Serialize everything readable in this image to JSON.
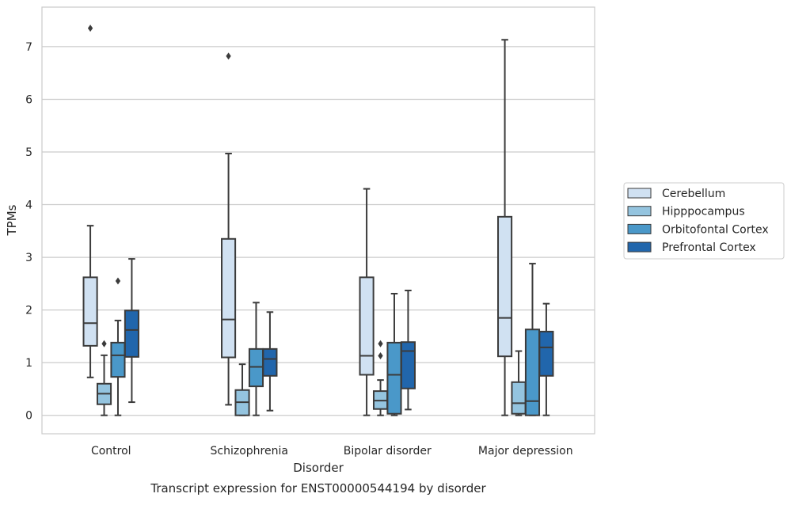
{
  "chart_data": {
    "type": "boxplot",
    "title": "Transcript expression for ENST00000544194 by disorder",
    "xlabel": "Disorder",
    "ylabel": "TPMs",
    "ylim": [
      -0.35,
      7.75
    ],
    "yticks": [
      0,
      1,
      2,
      3,
      4,
      5,
      6,
      7
    ],
    "grid": "horizontal",
    "legend_position": "right",
    "categories": [
      "Control",
      "Schizophrenia",
      "Bipolar disorder",
      "Major depression"
    ],
    "series": [
      {
        "name": "Cerebellum",
        "color": "#d0e1f2",
        "boxes": [
          {
            "whislo": 0.72,
            "q1": 1.32,
            "med": 1.75,
            "q3": 2.62,
            "whishi": 3.6,
            "fliers": [
              7.35
            ]
          },
          {
            "whislo": 0.2,
            "q1": 1.1,
            "med": 1.82,
            "q3": 3.35,
            "whishi": 4.97,
            "fliers": [
              6.82
            ]
          },
          {
            "whislo": 0.0,
            "q1": 0.77,
            "med": 1.13,
            "q3": 2.62,
            "whishi": 4.3,
            "fliers": []
          },
          {
            "whislo": 0.0,
            "q1": 1.12,
            "med": 1.85,
            "q3": 3.77,
            "whishi": 7.13,
            "fliers": []
          }
        ]
      },
      {
        "name": "Hipppocampus",
        "color": "#94c4df",
        "boxes": [
          {
            "whislo": 0.0,
            "q1": 0.21,
            "med": 0.41,
            "q3": 0.6,
            "whishi": 1.14,
            "fliers": [
              1.36
            ]
          },
          {
            "whislo": 0.0,
            "q1": 0.0,
            "med": 0.25,
            "q3": 0.48,
            "whishi": 0.97,
            "fliers": []
          },
          {
            "whislo": 0.0,
            "q1": 0.12,
            "med": 0.28,
            "q3": 0.46,
            "whishi": 0.67,
            "fliers": [
              1.13,
              1.36
            ]
          },
          {
            "whislo": 0.0,
            "q1": 0.03,
            "med": 0.23,
            "q3": 0.63,
            "whishi": 1.22,
            "fliers": []
          }
        ]
      },
      {
        "name": "Orbitofontal Cortex",
        "color": "#4a98c9",
        "boxes": [
          {
            "whislo": 0.0,
            "q1": 0.73,
            "med": 1.14,
            "q3": 1.38,
            "whishi": 1.8,
            "fliers": [
              2.55
            ]
          },
          {
            "whislo": 0.0,
            "q1": 0.55,
            "med": 0.92,
            "q3": 1.26,
            "whishi": 2.14,
            "fliers": []
          },
          {
            "whislo": 0.0,
            "q1": 0.03,
            "med": 0.77,
            "q3": 1.38,
            "whishi": 2.31,
            "fliers": []
          },
          {
            "whislo": 0.0,
            "q1": 0.0,
            "med": 0.27,
            "q3": 1.63,
            "whishi": 2.88,
            "fliers": []
          }
        ]
      },
      {
        "name": "Prefrontal Cortex",
        "color": "#2166ac",
        "boxes": [
          {
            "whislo": 0.25,
            "q1": 1.11,
            "med": 1.62,
            "q3": 1.99,
            "whishi": 2.97,
            "fliers": []
          },
          {
            "whislo": 0.09,
            "q1": 0.75,
            "med": 1.07,
            "q3": 1.26,
            "whishi": 1.96,
            "fliers": []
          },
          {
            "whislo": 0.11,
            "q1": 0.51,
            "med": 1.22,
            "q3": 1.39,
            "whishi": 2.37,
            "fliers": []
          },
          {
            "whislo": 0.0,
            "q1": 0.75,
            "med": 1.29,
            "q3": 1.59,
            "whishi": 2.12,
            "fliers": []
          }
        ]
      }
    ]
  }
}
